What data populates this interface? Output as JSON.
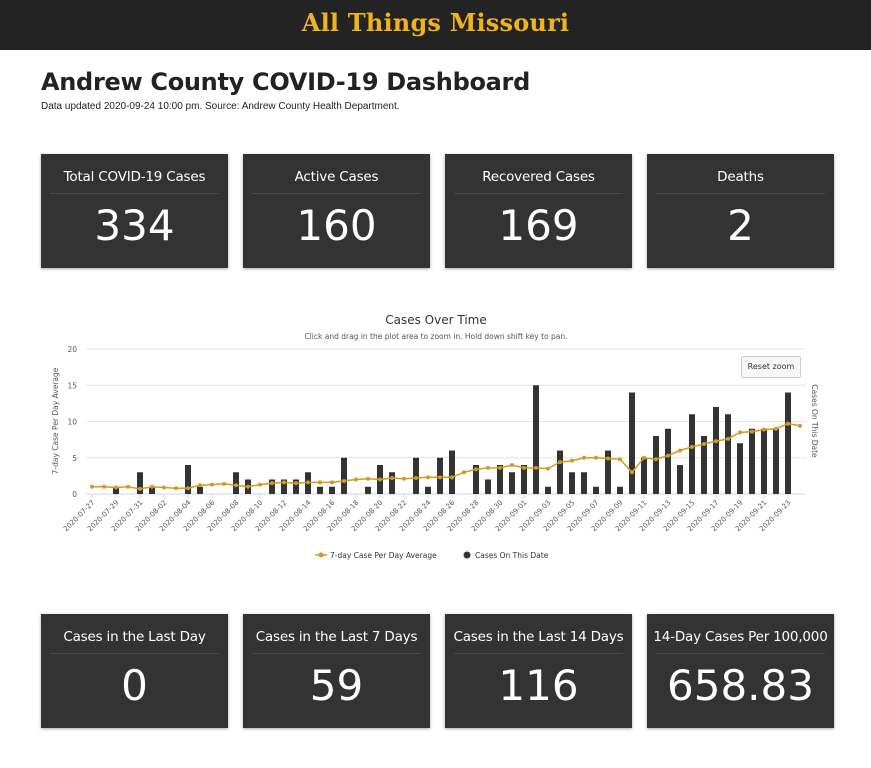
{
  "header": {
    "brand": "All Things Missouri"
  },
  "page": {
    "title": "Andrew County COVID-19 Dashboard",
    "updated": "Data updated 2020-09-24 10:00 pm. Source: Andrew County Health Department."
  },
  "summary_cards": [
    {
      "label": "Total COVID-19 Cases",
      "value": "334"
    },
    {
      "label": "Active Cases",
      "value": "160"
    },
    {
      "label": "Recovered Cases",
      "value": "169"
    },
    {
      "label": "Deaths",
      "value": "2"
    }
  ],
  "recent_cards": [
    {
      "label": "Cases in the Last Day",
      "value": "0"
    },
    {
      "label": "Cases in the Last 7 Days",
      "value": "59"
    },
    {
      "label": "Cases in the Last 14 Days",
      "value": "116"
    },
    {
      "label": "14-Day Cases Per 100,000",
      "value": "658.83"
    }
  ],
  "chart": {
    "reset_zoom_label": "Reset zoom"
  },
  "colors": {
    "topbar": "#232323",
    "brand": "#f1b21f",
    "card": "#333333",
    "bar": "#333333",
    "line": "#d09a24"
  },
  "chart_data": {
    "type": "bar",
    "title": "Cases Over Time",
    "subtitle": "Click and drag in the plot area to zoom in. Hold down shift key to pan.",
    "ylabel": "7-day Case Per Day Average",
    "y2label": "Cases On This Date",
    "ylim": [
      0,
      20
    ],
    "yticks": [
      0,
      5,
      10,
      15,
      20
    ],
    "grid": true,
    "legend_position": "bottom",
    "xtick_labels": [
      "2020-07-27",
      "2020-07-29",
      "2020-07-31",
      "2020-08-02",
      "2020-08-04",
      "2020-08-06",
      "2020-08-08",
      "2020-08-10",
      "2020-08-12",
      "2020-08-14",
      "2020-08-16",
      "2020-08-18",
      "2020-08-20",
      "2020-08-22",
      "2020-08-24",
      "2020-08-26",
      "2020-08-28",
      "2020-08-30",
      "2020-09-01",
      "2020-09-03",
      "2020-09-05",
      "2020-09-07",
      "2020-09-09",
      "2020-09-11",
      "2020-09-13",
      "2020-09-15",
      "2020-09-17",
      "2020-09-19",
      "2020-09-21",
      "2020-09-23"
    ],
    "dates": [
      "2020-07-27",
      "2020-07-28",
      "2020-07-29",
      "2020-07-30",
      "2020-07-31",
      "2020-08-01",
      "2020-08-02",
      "2020-08-03",
      "2020-08-04",
      "2020-08-05",
      "2020-08-06",
      "2020-08-07",
      "2020-08-08",
      "2020-08-09",
      "2020-08-10",
      "2020-08-11",
      "2020-08-12",
      "2020-08-13",
      "2020-08-14",
      "2020-08-15",
      "2020-08-16",
      "2020-08-17",
      "2020-08-18",
      "2020-08-19",
      "2020-08-20",
      "2020-08-21",
      "2020-08-22",
      "2020-08-23",
      "2020-08-24",
      "2020-08-25",
      "2020-08-26",
      "2020-08-27",
      "2020-08-28",
      "2020-08-29",
      "2020-08-30",
      "2020-08-31",
      "2020-09-01",
      "2020-09-02",
      "2020-09-03",
      "2020-09-04",
      "2020-09-05",
      "2020-09-06",
      "2020-09-07",
      "2020-09-08",
      "2020-09-09",
      "2020-09-10",
      "2020-09-11",
      "2020-09-12",
      "2020-09-13",
      "2020-09-14",
      "2020-09-15",
      "2020-09-16",
      "2020-09-17",
      "2020-09-18",
      "2020-09-19",
      "2020-09-20",
      "2020-09-21",
      "2020-09-22",
      "2020-09-23",
      "2020-09-24"
    ],
    "series": [
      {
        "name": "7-day Case Per Day Average",
        "type": "line",
        "values": [
          1,
          1,
          0.9,
          1,
          0.7,
          1,
          0.9,
          0.8,
          0.8,
          1.2,
          1.3,
          1.4,
          1.2,
          1.0,
          1.3,
          1.5,
          1.6,
          1.5,
          1.6,
          1.6,
          1.6,
          1.8,
          2.0,
          2.1,
          2.0,
          2.2,
          2.1,
          2.2,
          2.3,
          2.3,
          2.3,
          3.0,
          3.4,
          3.6,
          3.6,
          4.0,
          3.6,
          3.6,
          3.5,
          4.4,
          4.6,
          5.0,
          5.0,
          4.9,
          4.8,
          3.0,
          5.0,
          4.8,
          5.3,
          6.0,
          6.5,
          6.9,
          7.3,
          7.6,
          8.5,
          8.6,
          8.9,
          9.0,
          9.7,
          9.4
        ]
      },
      {
        "name": "Cases On This Date",
        "type": "bar",
        "values": [
          0,
          0,
          1,
          0,
          3,
          1,
          0,
          0,
          4,
          1,
          0,
          0,
          3,
          2,
          0,
          2,
          2,
          2,
          3,
          1,
          1,
          5,
          0,
          1,
          4,
          3,
          0,
          5,
          1,
          5,
          6,
          0,
          4,
          2,
          4,
          3,
          4,
          15,
          1,
          6,
          3,
          3,
          1,
          6,
          1,
          14,
          5,
          8,
          9,
          4,
          11,
          8,
          12,
          11,
          7,
          9,
          9,
          9,
          14,
          0
        ]
      }
    ]
  }
}
